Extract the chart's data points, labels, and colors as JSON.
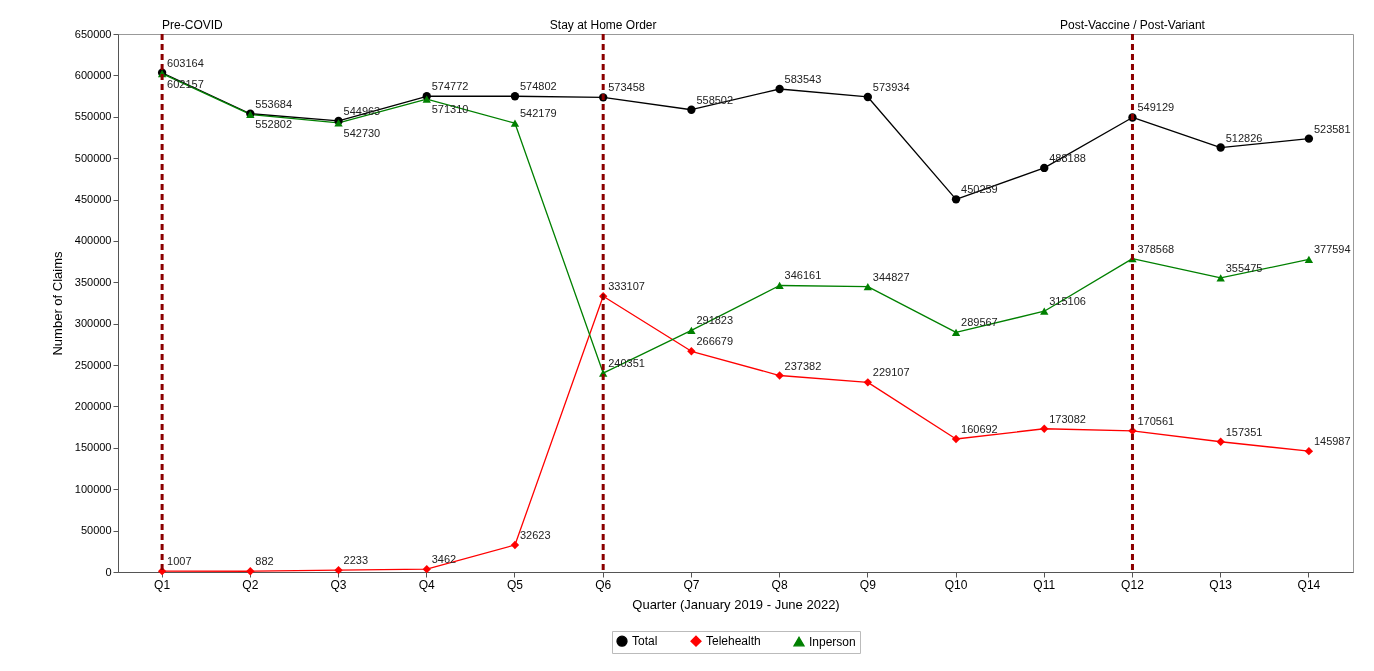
{
  "chart_data": {
    "type": "line",
    "xlabel": "Quarter (January 2019 - June 2022)",
    "ylabel": "Number of Claims",
    "categories": [
      "Q1",
      "Q2",
      "Q3",
      "Q4",
      "Q5",
      "Q6",
      "Q7",
      "Q8",
      "Q9",
      "Q10",
      "Q11",
      "Q12",
      "Q13",
      "Q14"
    ],
    "series": [
      {
        "name": "Total",
        "color": "#000000",
        "marker": "circle",
        "values": [
          603164,
          553684,
          544963,
          574772,
          574802,
          573458,
          558502,
          583543,
          573934,
          450259,
          488188,
          549129,
          512826,
          523581
        ]
      },
      {
        "name": "Telehealth",
        "color": "#ff0000",
        "marker": "diamond",
        "values": [
          1007,
          882,
          2233,
          3462,
          32623,
          333107,
          266679,
          237382,
          229107,
          160692,
          173082,
          170561,
          157351,
          145987
        ]
      },
      {
        "name": "Inperson",
        "color": "#008000",
        "marker": "triangle",
        "values": [
          602157,
          552802,
          542730,
          571310,
          542179,
          240351,
          291823,
          346161,
          344827,
          289567,
          315106,
          378568,
          355475,
          377594
        ]
      }
    ],
    "ylim": [
      0,
      650000
    ],
    "yticks": [
      0,
      50000,
      100000,
      150000,
      200000,
      250000,
      300000,
      350000,
      400000,
      450000,
      500000,
      550000,
      600000,
      650000
    ],
    "ref_lines": [
      {
        "axis": "x",
        "value": "Q1",
        "label": "Pre-COVID",
        "color": "#8b0000",
        "line_style": "dashed"
      },
      {
        "axis": "x",
        "value": "Q6",
        "label": "Stay at Home Order",
        "color": "#8b0000",
        "line_style": "dashed"
      },
      {
        "axis": "x",
        "value": "Q12",
        "label": "Post-Vaccine / Post-Variant",
        "color": "#8b0000",
        "line_style": "dashed"
      }
    ],
    "data_labels": true,
    "legend": "bottom",
    "grid": false,
    "line_style": "solid"
  }
}
